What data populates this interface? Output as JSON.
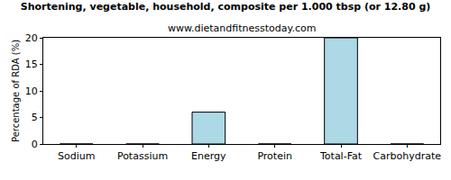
{
  "chart_data": {
    "type": "bar",
    "title": "Shortening, vegetable, household, composite per 1.000 tbsp (or 12.80 g)",
    "subtitle": "www.dietandfitnesstoday.com",
    "y_label": "Percentage of RDA (%)",
    "categories": [
      "Sodium",
      "Potassium",
      "Energy",
      "Protein",
      "Total-Fat",
      "Carbohydrate"
    ],
    "values": [
      0,
      0,
      6,
      0,
      20,
      0
    ],
    "color": "#add8e6",
    "ylim": [
      0,
      20
    ],
    "yticks": [
      0,
      5,
      10,
      15,
      20
    ],
    "grid": false
  }
}
